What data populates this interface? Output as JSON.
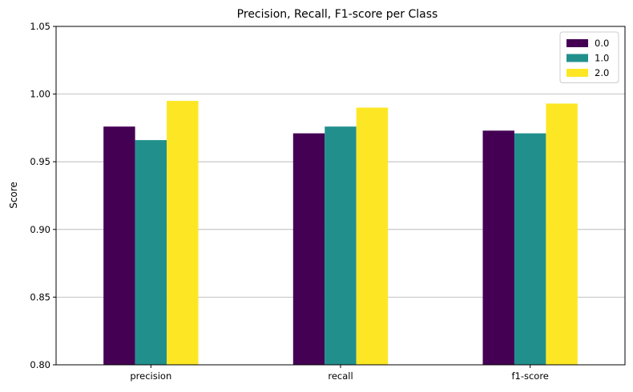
{
  "chart_data": {
    "type": "bar",
    "title": "Precision, Recall, F1-score per Class",
    "xlabel": "",
    "ylabel": "Score",
    "categories": [
      "precision",
      "recall",
      "f1-score"
    ],
    "series": [
      {
        "name": "0.0",
        "color": "#440154",
        "values": [
          0.976,
          0.971,
          0.973
        ]
      },
      {
        "name": "1.0",
        "color": "#21908d",
        "values": [
          0.966,
          0.976,
          0.971
        ]
      },
      {
        "name": "2.0",
        "color": "#fde725",
        "values": [
          0.995,
          0.99,
          0.993
        ]
      }
    ],
    "ylim": [
      0.8,
      1.05
    ],
    "yticks": [
      "0.80",
      "0.85",
      "0.90",
      "0.95",
      "1.00",
      "1.05"
    ],
    "grid": "y",
    "legend_position": "top-right"
  }
}
